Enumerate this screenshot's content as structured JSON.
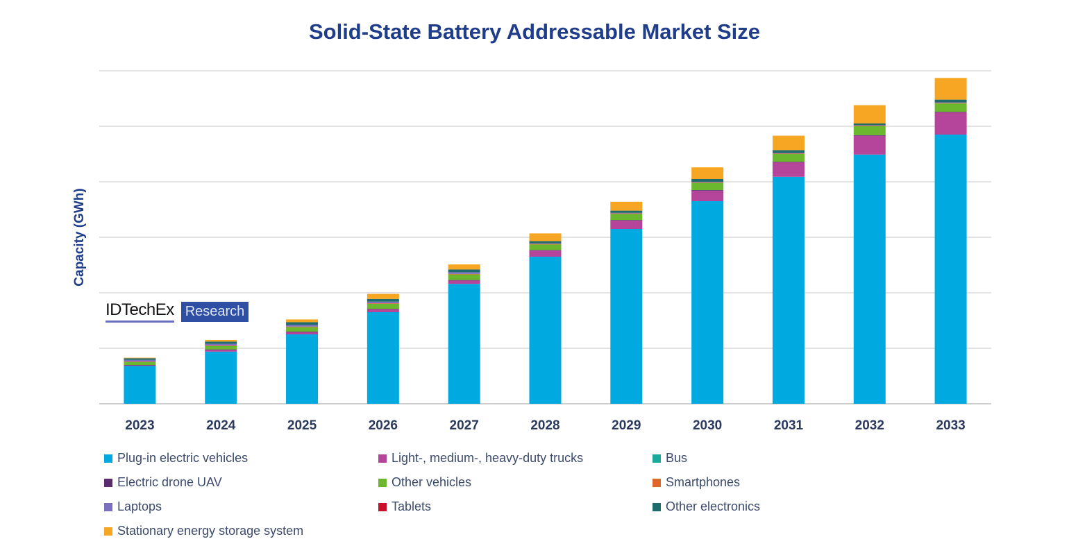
{
  "chart_data": {
    "type": "bar",
    "stacked": true,
    "title": "Solid-State Battery Addressable Market Size",
    "xlabel": "",
    "ylabel": "Capacity (GWh)",
    "ylim": [
      0,
      6
    ],
    "y_tick_labels_shown": false,
    "grid": true,
    "legend_position": "bottom",
    "categories": [
      "2023",
      "2024",
      "2025",
      "2026",
      "2027",
      "2028",
      "2029",
      "2030",
      "2031",
      "2032",
      "2033"
    ],
    "series": [
      {
        "name": "Plug-in electric vehicles",
        "color": "#00a9e0",
        "values": [
          0.68,
          0.94,
          1.25,
          1.65,
          2.16,
          2.65,
          3.15,
          3.65,
          4.09,
          4.49,
          4.85
        ]
      },
      {
        "name": "Light-, medium-, heavy-duty trucks",
        "color": "#b5449b",
        "values": [
          0.01,
          0.03,
          0.04,
          0.05,
          0.06,
          0.11,
          0.15,
          0.19,
          0.26,
          0.34,
          0.4
        ]
      },
      {
        "name": "Bus",
        "color": "#1aa99a",
        "values": [
          0,
          0,
          0,
          0,
          0,
          0,
          0,
          0,
          0,
          0,
          0
        ]
      },
      {
        "name": "Electric drone UAV",
        "color": "#5b2c6f",
        "values": [
          0.01,
          0.01,
          0.01,
          0.01,
          0.01,
          0.01,
          0.01,
          0.01,
          0.01,
          0.01,
          0.01
        ]
      },
      {
        "name": "Other vehicles",
        "color": "#6bb82f",
        "values": [
          0.05,
          0.06,
          0.08,
          0.09,
          0.1,
          0.1,
          0.11,
          0.13,
          0.14,
          0.16,
          0.15
        ]
      },
      {
        "name": "Smartphones",
        "color": "#e0672a",
        "values": [
          0.01,
          0.01,
          0.01,
          0.01,
          0.01,
          0.01,
          0.01,
          0.01,
          0.01,
          0.01,
          0.01
        ]
      },
      {
        "name": "Laptops",
        "color": "#7b6fc0",
        "values": [
          0.03,
          0.03,
          0.03,
          0.03,
          0.03,
          0.01,
          0.01,
          0.01,
          0.01,
          0.01,
          0.01
        ]
      },
      {
        "name": "Tablets",
        "color": "#c8102e",
        "values": [
          0,
          0,
          0,
          0,
          0,
          0,
          0,
          0,
          0,
          0,
          0
        ]
      },
      {
        "name": "Other electronics",
        "color": "#1f6b6b",
        "values": [
          0.03,
          0.04,
          0.05,
          0.05,
          0.05,
          0.04,
          0.04,
          0.05,
          0.05,
          0.03,
          0.05
        ]
      },
      {
        "name": "Stationary energy storage system",
        "color": "#f6a623",
        "values": [
          0.01,
          0.03,
          0.05,
          0.09,
          0.09,
          0.14,
          0.16,
          0.21,
          0.26,
          0.33,
          0.39
        ]
      }
    ]
  },
  "logo": {
    "brand": "IDTechEx",
    "tag": "Research"
  },
  "colors": {
    "title": "#1f3d8a",
    "axis_text": "#2b3a5c",
    "grid": "#dcdcdc"
  }
}
